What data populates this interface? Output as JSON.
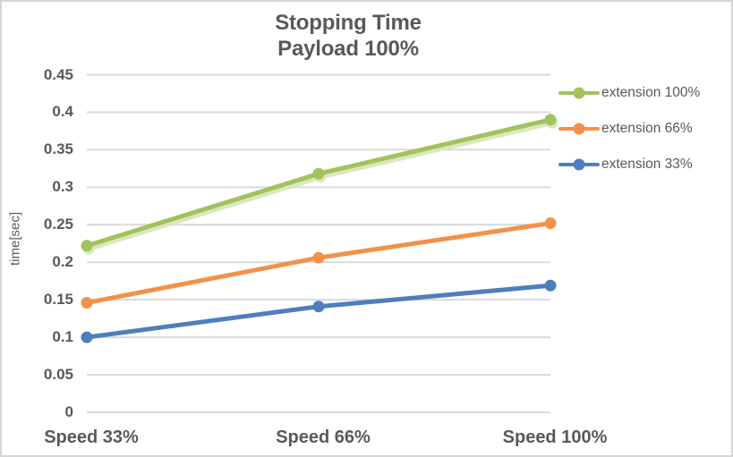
{
  "chart": {
    "title_line1": "Stopping Time",
    "title_line2": "Payload 100%",
    "y_axis_title": "time[sec]"
  },
  "chart_data": {
    "type": "line",
    "title": "Stopping Time Payload 100%",
    "categories": [
      "Speed 33%",
      "Speed 66%",
      "Speed 100%"
    ],
    "series": [
      {
        "name": "extension 100%",
        "values": [
          0.222,
          0.318,
          0.39
        ],
        "color": "#A2C25C",
        "glow": "#DAE8BE"
      },
      {
        "name": "extension 66%",
        "values": [
          0.146,
          0.206,
          0.252
        ],
        "color": "#F2914A"
      },
      {
        "name": "extension 33%",
        "values": [
          0.1,
          0.141,
          0.169
        ],
        "color": "#4E7EBD"
      }
    ],
    "xlabel": "",
    "ylabel": "time[sec]",
    "ylim": [
      0,
      0.45
    ],
    "ytick_step": 0.05,
    "yticks": [
      "0",
      "0.05",
      "0.1",
      "0.15",
      "0.2",
      "0.25",
      "0.3",
      "0.35",
      "0.4",
      "0.45"
    ],
    "grid": true,
    "legend_position": "right",
    "marker": "circle",
    "colors": {
      "text": "#595959",
      "gridline": "#D9D9D9",
      "border": "#D6D6D6",
      "background": "#FFFFFF"
    }
  }
}
